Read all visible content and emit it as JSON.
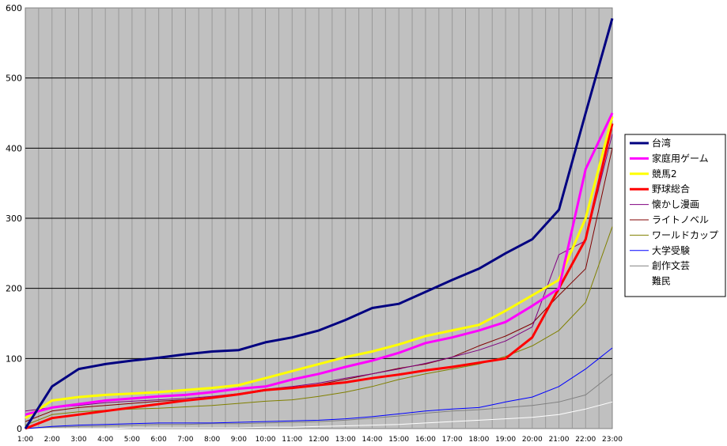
{
  "chart_data": {
    "type": "line",
    "title": "",
    "xlabel": "",
    "ylabel": "",
    "categories": [
      "1:00",
      "2:00",
      "3:00",
      "4:00",
      "5:00",
      "6:00",
      "7:00",
      "8:00",
      "9:00",
      "10:00",
      "11:00",
      "12:00",
      "13:00",
      "14:00",
      "15:00",
      "16:00",
      "17:00",
      "18:00",
      "19:00",
      "20:00",
      "21:00",
      "22:00",
      "23:00"
    ],
    "ylim": [
      0,
      600
    ],
    "yticks": [
      0,
      100,
      200,
      300,
      400,
      500,
      600
    ],
    "grid": true,
    "legend_position": "right",
    "plot_background": "#c0c0c0",
    "series": [
      {
        "name": "台湾",
        "color": "#000080",
        "width": 3,
        "values": [
          0,
          60,
          85,
          92,
          97,
          101,
          106,
          110,
          112,
          123,
          130,
          140,
          155,
          172,
          178,
          195,
          212,
          228,
          250,
          270,
          312,
          450,
          585
        ]
      },
      {
        "name": "家庭用ゲーム",
        "color": "#ff00ff",
        "width": 3,
        "values": [
          20,
          30,
          35,
          40,
          43,
          46,
          48,
          52,
          57,
          60,
          70,
          78,
          88,
          97,
          108,
          122,
          130,
          140,
          152,
          175,
          200,
          370,
          450
        ]
      },
      {
        "name": "競馬2",
        "color": "#ffff00",
        "width": 3,
        "values": [
          15,
          40,
          45,
          48,
          50,
          52,
          55,
          58,
          62,
          72,
          82,
          92,
          102,
          110,
          120,
          132,
          140,
          148,
          168,
          190,
          212,
          300,
          445
        ]
      },
      {
        "name": "野球総合",
        "color": "#ff0000",
        "width": 3,
        "values": [
          0,
          15,
          20,
          25,
          30,
          35,
          40,
          44,
          49,
          55,
          58,
          62,
          66,
          72,
          77,
          83,
          88,
          94,
          100,
          130,
          200,
          270,
          435
        ]
      },
      {
        "name": "懐かし漫画",
        "color": "#800080",
        "width": 1,
        "values": [
          25,
          30,
          33,
          37,
          39,
          41,
          43,
          46,
          50,
          56,
          60,
          65,
          72,
          78,
          85,
          93,
          102,
          112,
          125,
          145,
          248,
          268,
          420
        ]
      },
      {
        "name": "ライトノベル",
        "color": "#800000",
        "width": 1,
        "values": [
          10,
          25,
          30,
          33,
          36,
          39,
          41,
          44,
          48,
          54,
          58,
          63,
          70,
          78,
          86,
          92,
          102,
          118,
          132,
          150,
          190,
          228,
          400
        ]
      },
      {
        "name": "ワールドカップ",
        "color": "#808000",
        "width": 1,
        "values": [
          5,
          20,
          24,
          26,
          28,
          29,
          31,
          33,
          36,
          39,
          41,
          46,
          52,
          60,
          70,
          78,
          85,
          92,
          103,
          118,
          140,
          180,
          288
        ]
      },
      {
        "name": "大学受験",
        "color": "#0000ff",
        "width": 1,
        "values": [
          0,
          3,
          5,
          6,
          7,
          8,
          8,
          8,
          9,
          10,
          11,
          12,
          14,
          17,
          21,
          25,
          28,
          30,
          38,
          45,
          60,
          85,
          115
        ]
      },
      {
        "name": "創作文芸",
        "color": "#808080",
        "width": 1,
        "values": [
          0,
          2,
          3,
          4,
          5,
          6,
          6,
          7,
          7,
          8,
          9,
          10,
          12,
          15,
          18,
          22,
          25,
          27,
          30,
          33,
          38,
          48,
          78
        ]
      },
      {
        "name": "難民",
        "color": "#ffffff",
        "width": 1,
        "values": [
          0,
          0,
          0,
          0,
          1,
          1,
          1,
          1,
          1,
          2,
          2,
          3,
          4,
          5,
          6,
          8,
          10,
          12,
          14,
          16,
          20,
          28,
          38
        ]
      }
    ]
  }
}
